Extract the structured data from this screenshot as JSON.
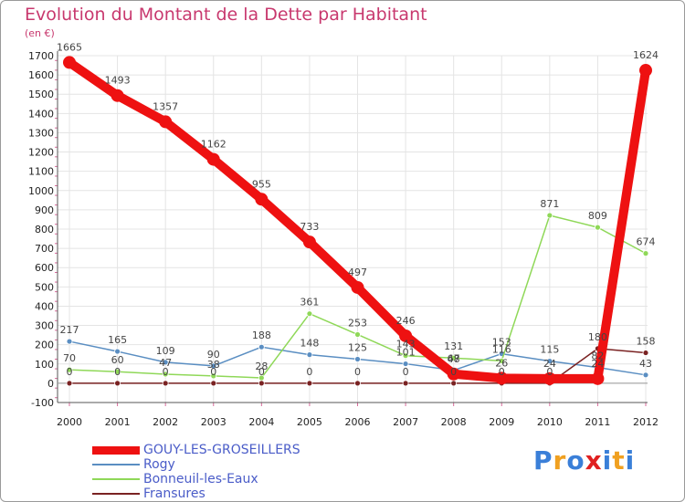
{
  "chart_data": {
    "type": "line",
    "title": "Evolution du Montant de la Dette par Habitant",
    "ylabel": "(en €)",
    "xlabel": "",
    "ylim": [
      -100,
      1700
    ],
    "yticks": [
      -100,
      0,
      100,
      200,
      300,
      400,
      500,
      600,
      700,
      800,
      900,
      1000,
      1100,
      1200,
      1300,
      1400,
      1500,
      1600,
      1700
    ],
    "categories": [
      "2000",
      "2001",
      "2002",
      "2003",
      "2004",
      "2005",
      "2006",
      "2007",
      "2008",
      "2009",
      "2010",
      "2011",
      "2012"
    ],
    "series": [
      {
        "name": "GOUY-LES-GROSEILLERS",
        "color": "#ee1111",
        "values": [
          1665,
          1493,
          1357,
          1162,
          955,
          733,
          497,
          246,
          48,
          26,
          24,
          24,
          1624
        ],
        "labels": [
          "1665",
          "1493",
          "1357",
          "1162",
          "955",
          "733",
          "497",
          "246",
          "48",
          "26",
          "24",
          "24",
          "1624"
        ]
      },
      {
        "name": "Rogy",
        "color": "#5a8ec2",
        "values": [
          217,
          165,
          109,
          90,
          188,
          148,
          125,
          101,
          67,
          153,
          115,
          82,
          43
        ],
        "labels": [
          "217",
          "165",
          "109",
          "90",
          "188",
          "148",
          "125",
          "101",
          "67",
          "153",
          "115",
          "82",
          "43"
        ]
      },
      {
        "name": "Bonneuil-les-Eaux",
        "color": "#8fd858",
        "values": [
          70,
          60,
          47,
          38,
          28,
          361,
          253,
          143,
          131,
          116,
          871,
          809,
          674
        ],
        "labels": [
          "70",
          "60",
          "47",
          "38",
          "28",
          "361",
          "253",
          "143",
          "131",
          "116",
          "871",
          "809",
          "674"
        ]
      },
      {
        "name": "Fransures",
        "color": "#7a2222",
        "values": [
          0,
          0,
          0,
          0,
          0,
          0,
          0,
          0,
          0,
          0,
          0,
          180,
          158
        ],
        "labels": [
          "0",
          "0",
          "0",
          "0",
          "0",
          "0",
          "0",
          "0",
          "0",
          "0",
          "0",
          "180",
          "158"
        ]
      }
    ]
  },
  "legend": {
    "items": [
      {
        "label": "GOUY-LES-GROSEILLERS"
      },
      {
        "label": "Rogy"
      },
      {
        "label": "Bonneuil-les-Eaux"
      },
      {
        "label": "Fransures"
      }
    ]
  },
  "brand": {
    "letters": [
      "P",
      "r",
      "o",
      "x",
      "i",
      "t",
      "i"
    ],
    "colors": [
      "#3a7fd8",
      "#f0a020",
      "#3a7fd8",
      "#e02020",
      "#3a7fd8",
      "#f0a020",
      "#3a7fd8"
    ]
  }
}
